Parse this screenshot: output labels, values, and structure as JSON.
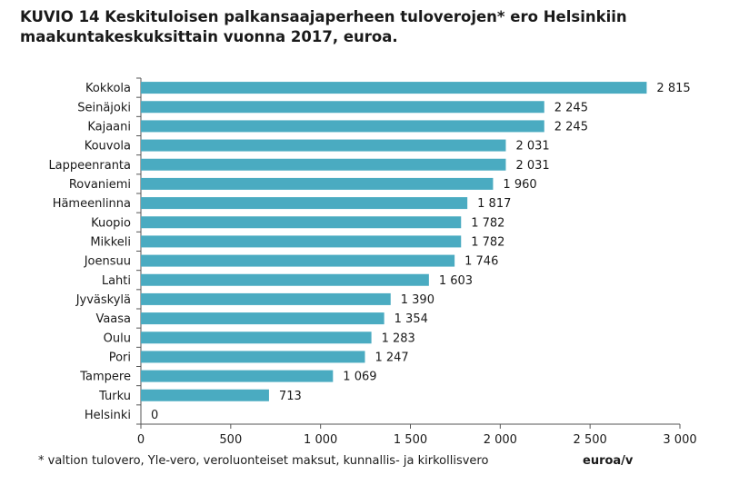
{
  "title": "KUVIO 14 Keskituloisen palkansaajaperheen tuloverojen* ero Helsinkiin maakuntakeskuksittain vuonna 2017, euroa.",
  "footnote": "* valtion tulovero, Yle-vero, veroluonteiset maksut, kunnallis- ja kirkollisvero",
  "colors": {
    "bar": "#4aabc1",
    "axis": "#555555",
    "text": "#1a1a1a"
  },
  "chart_data": {
    "type": "bar",
    "orientation": "horizontal",
    "categories": [
      "Kokkola",
      "Seinäjoki",
      "Kajaani",
      "Kouvola",
      "Lappeenranta",
      "Rovaniemi",
      "Hämeenlinna",
      "Kuopio",
      "Mikkeli",
      "Joensuu",
      "Lahti",
      "Jyväskylä",
      "Vaasa",
      "Oulu",
      "Pori",
      "Tampere",
      "Turku",
      "Helsinki"
    ],
    "values": [
      2815,
      2245,
      2245,
      2031,
      2031,
      1960,
      1817,
      1782,
      1782,
      1746,
      1603,
      1390,
      1354,
      1283,
      1247,
      1069,
      713,
      0
    ],
    "value_labels": [
      "2 815",
      "2 245",
      "2 245",
      "2 031",
      "2 031",
      "1 960",
      "1 817",
      "1 782",
      "1 782",
      "1 746",
      "1 603",
      "1 390",
      "1 354",
      "1 283",
      "1 247",
      "1 069",
      "713",
      "0"
    ],
    "xlim": [
      0,
      3000
    ],
    "xticks": [
      0,
      500,
      1000,
      1500,
      2000,
      2500,
      3000
    ],
    "xtick_labels": [
      "0",
      "500",
      "1 000",
      "1 500",
      "2 000",
      "2 500",
      "3 000"
    ],
    "xlabel": "euroa/v",
    "grid": false,
    "legend": "none"
  }
}
